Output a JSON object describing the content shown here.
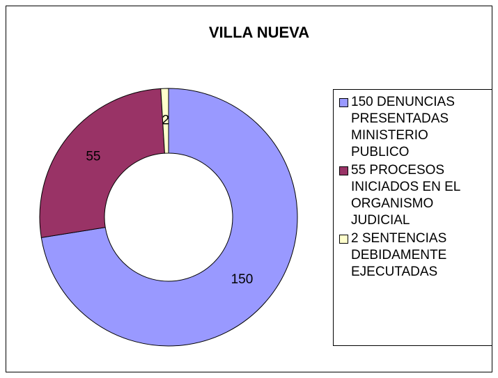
{
  "chart_data": {
    "type": "donut",
    "title": "VILLA NUEVA",
    "categories": [
      "150 DENUNCIAS PRESENTADAS MINISTERIO PUBLICO",
      "55 PROCESOS INICIADOS EN EL ORGANISMO JUDICIAL",
      "2 SENTENCIAS DEBIDAMENTE EJECUTADAS"
    ],
    "values": [
      150,
      55,
      2
    ],
    "colors": [
      "#9999ff",
      "#993366",
      "#ffffcc"
    ],
    "legend": "right"
  }
}
